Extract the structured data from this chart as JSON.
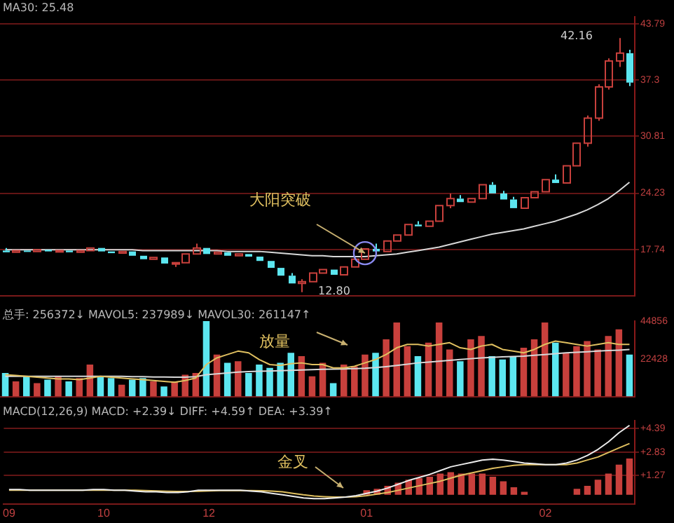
{
  "chart_data": [
    {
      "type": "candlestick",
      "title": "MA30: 25.48",
      "categories": [
        "09",
        null,
        null,
        null,
        null,
        null,
        null,
        null,
        null,
        "10",
        null,
        null,
        null,
        null,
        null,
        null,
        null,
        null,
        null,
        "12",
        null,
        null,
        null,
        null,
        null,
        null,
        null,
        null,
        null,
        null,
        null,
        null,
        null,
        null,
        "01",
        null,
        null,
        null,
        null,
        null,
        null,
        null,
        null,
        null,
        null,
        null,
        null,
        null,
        null,
        null,
        null,
        "02",
        null,
        null,
        null,
        null,
        null,
        null,
        null,
        null
      ],
      "ohlc": [
        [
          17.6,
          17.9,
          17.3,
          17.4
        ],
        [
          17.4,
          17.7,
          17.2,
          17.6
        ],
        [
          17.6,
          17.8,
          17.4,
          17.5
        ],
        [
          17.5,
          17.8,
          17.3,
          17.7
        ],
        [
          17.7,
          17.9,
          17.4,
          17.5
        ],
        [
          17.5,
          17.7,
          17.3,
          17.6
        ],
        [
          17.6,
          17.8,
          17.3,
          17.4
        ],
        [
          17.4,
          17.7,
          17.2,
          17.6
        ],
        [
          17.6,
          18.0,
          17.5,
          17.9
        ],
        [
          17.9,
          18.1,
          17.4,
          17.5
        ],
        [
          17.5,
          17.7,
          17.2,
          17.3
        ],
        [
          17.3,
          17.6,
          17.1,
          17.5
        ],
        [
          17.5,
          17.6,
          16.9,
          17.0
        ],
        [
          17.0,
          17.2,
          16.5,
          16.6
        ],
        [
          16.6,
          16.9,
          16.4,
          16.8
        ],
        [
          16.8,
          16.9,
          16.0,
          16.1
        ],
        [
          16.1,
          16.4,
          15.7,
          16.2
        ],
        [
          16.2,
          17.4,
          16.1,
          17.2
        ],
        [
          17.2,
          18.4,
          17.0,
          17.9
        ],
        [
          17.9,
          18.0,
          17.0,
          17.2
        ],
        [
          17.2,
          17.6,
          17.0,
          17.4
        ],
        [
          17.4,
          17.6,
          16.8,
          17.0
        ],
        [
          17.0,
          17.4,
          16.9,
          17.2
        ],
        [
          17.2,
          17.3,
          16.7,
          16.9
        ],
        [
          16.9,
          17.0,
          16.2,
          16.4
        ],
        [
          16.4,
          16.5,
          15.4,
          15.6
        ],
        [
          15.6,
          15.8,
          14.5,
          14.7
        ],
        [
          14.7,
          15.0,
          13.6,
          13.8
        ],
        [
          13.8,
          14.3,
          12.8,
          14.0
        ],
        [
          14.0,
          15.2,
          13.9,
          15.0
        ],
        [
          15.0,
          15.6,
          14.8,
          15.4
        ],
        [
          15.4,
          15.5,
          14.6,
          14.8
        ],
        [
          14.8,
          15.9,
          14.7,
          15.7
        ],
        [
          15.7,
          16.8,
          15.5,
          16.6
        ],
        [
          16.6,
          18.0,
          16.5,
          17.8
        ],
        [
          17.8,
          18.4,
          17.3,
          17.5
        ],
        [
          17.5,
          18.9,
          17.4,
          18.7
        ],
        [
          18.7,
          19.6,
          18.5,
          19.4
        ],
        [
          19.4,
          20.8,
          19.2,
          20.6
        ],
        [
          20.6,
          21.0,
          20.2,
          20.4
        ],
        [
          20.4,
          21.2,
          20.3,
          21.0
        ],
        [
          21.0,
          23.0,
          20.9,
          22.8
        ],
        [
          22.8,
          24.2,
          22.5,
          23.6
        ],
        [
          23.6,
          24.0,
          23.0,
          23.2
        ],
        [
          23.2,
          23.8,
          23.1,
          23.6
        ],
        [
          23.6,
          25.4,
          23.5,
          25.2
        ],
        [
          25.2,
          25.5,
          24.0,
          24.2
        ],
        [
          24.2,
          24.5,
          23.3,
          23.5
        ],
        [
          23.5,
          23.8,
          22.3,
          22.5
        ],
        [
          22.5,
          23.9,
          22.4,
          23.7
        ],
        [
          23.7,
          24.6,
          23.5,
          24.4
        ],
        [
          24.4,
          26.0,
          24.2,
          25.8
        ],
        [
          25.8,
          26.4,
          25.2,
          25.4
        ],
        [
          25.4,
          27.6,
          25.3,
          27.4
        ],
        [
          27.4,
          30.2,
          27.2,
          30.0
        ],
        [
          30.0,
          33.2,
          29.6,
          32.9
        ],
        [
          32.9,
          36.8,
          32.6,
          36.5
        ],
        [
          36.5,
          39.8,
          36.2,
          39.5
        ],
        [
          39.5,
          42.16,
          38.8,
          40.4
        ],
        [
          40.4,
          40.8,
          36.6,
          37.0
        ]
      ],
      "colors": [
        "#5ce6f0",
        "#c8403c",
        "#5ce6f0",
        "#c8403c",
        "#5ce6f0",
        "#c8403c",
        "#5ce6f0",
        "#c8403c",
        "#c8403c",
        "#5ce6f0",
        "#5ce6f0",
        "#c8403c",
        "#5ce6f0",
        "#5ce6f0",
        "#c8403c",
        "#5ce6f0",
        "#c8403c",
        "#c8403c",
        "#c8403c",
        "#5ce6f0",
        "#c8403c",
        "#5ce6f0",
        "#c8403c",
        "#5ce6f0",
        "#5ce6f0",
        "#5ce6f0",
        "#5ce6f0",
        "#5ce6f0",
        "#c8403c",
        "#c8403c",
        "#c8403c",
        "#5ce6f0",
        "#c8403c",
        "#c8403c",
        "#c8403c",
        "#5ce6f0",
        "#c8403c",
        "#c8403c",
        "#c8403c",
        "#5ce6f0",
        "#c8403c",
        "#c8403c",
        "#c8403c",
        "#5ce6f0",
        "#c8403c",
        "#c8403c",
        "#5ce6f0",
        "#5ce6f0",
        "#5ce6f0",
        "#c8403c",
        "#c8403c",
        "#c8403c",
        "#5ce6f0",
        "#c8403c",
        "#c8403c",
        "#c8403c",
        "#c8403c",
        "#c8403c",
        "#c8403c",
        "#5ce6f0"
      ],
      "series": [
        {
          "type": "line",
          "color": "#d8d8d8",
          "values": [
            17.7,
            17.7,
            17.7,
            17.7,
            17.7,
            17.7,
            17.7,
            17.7,
            17.7,
            17.7,
            17.7,
            17.7,
            17.7,
            17.6,
            17.6,
            17.6,
            17.6,
            17.6,
            17.6,
            17.6,
            17.6,
            17.5,
            17.5,
            17.5,
            17.5,
            17.4,
            17.3,
            17.2,
            17.1,
            17.0,
            17.0,
            16.9,
            16.9,
            16.9,
            16.9,
            17.0,
            17.1,
            17.2,
            17.4,
            17.6,
            17.8,
            18.0,
            18.3,
            18.6,
            18.9,
            19.2,
            19.5,
            19.7,
            19.9,
            20.1,
            20.4,
            20.7,
            21.0,
            21.4,
            21.8,
            22.3,
            22.9,
            23.6,
            24.5,
            25.48
          ]
        }
      ],
      "ylim": [
        12.4,
        44.6
      ],
      "yticks": [
        17.74,
        24.23,
        30.81,
        37.3,
        43.79
      ],
      "grid": "y",
      "tick_labels": "y",
      "annotations": [
        "42.16",
        "12.80",
        {
          "text": "大阳突破",
          "x": "01",
          "y": 17.3
        }
      ]
    },
    {
      "type": "bar",
      "title": "总手: 256372↓ MAVOL5: 237989↓ MAVOL30: 261147↑",
      "categories": [
        "09",
        null,
        null,
        null,
        null,
        null,
        null,
        null,
        null,
        "10",
        null,
        null,
        null,
        null,
        null,
        null,
        null,
        null,
        null,
        "12",
        null,
        null,
        null,
        null,
        null,
        null,
        null,
        null,
        null,
        null,
        null,
        null,
        null,
        null,
        "01",
        null,
        null,
        null,
        null,
        null,
        null,
        null,
        null,
        null,
        null,
        null,
        null,
        null,
        null,
        null,
        null,
        "02",
        null,
        null,
        null,
        null,
        null,
        null,
        null,
        null
      ],
      "series": [
        {
          "type": "bar",
          "colors": [
            "#5ce6f0",
            "#c8403c",
            "#5ce6f0",
            "#c8403c",
            "#5ce6f0",
            "#c8403c",
            "#5ce6f0",
            "#c8403c",
            "#c8403c",
            "#5ce6f0",
            "#5ce6f0",
            "#c8403c",
            "#5ce6f0",
            "#5ce6f0",
            "#c8403c",
            "#5ce6f0",
            "#c8403c",
            "#c8403c",
            "#c8403c",
            "#5ce6f0",
            "#c8403c",
            "#5ce6f0",
            "#c8403c",
            "#5ce6f0",
            "#5ce6f0",
            "#5ce6f0",
            "#5ce6f0",
            "#5ce6f0",
            "#c8403c",
            "#c8403c",
            "#c8403c",
            "#5ce6f0",
            "#c8403c",
            "#c8403c",
            "#c8403c",
            "#5ce6f0",
            "#c8403c",
            "#c8403c",
            "#c8403c",
            "#5ce6f0",
            "#c8403c",
            "#c8403c",
            "#c8403c",
            "#5ce6f0",
            "#c8403c",
            "#c8403c",
            "#5ce6f0",
            "#5ce6f0",
            "#5ce6f0",
            "#c8403c",
            "#c8403c",
            "#c8403c",
            "#5ce6f0",
            "#c8403c",
            "#c8403c",
            "#c8403c",
            "#c8403c",
            "#c8403c",
            "#c8403c",
            "#5ce6f0"
          ],
          "values": [
            14000,
            9000,
            12000,
            8000,
            10000,
            12000,
            9000,
            11000,
            19000,
            12000,
            11000,
            7000,
            10000,
            11000,
            9000,
            6000,
            9000,
            13000,
            14000,
            44856,
            25000,
            20000,
            21000,
            14000,
            19000,
            17000,
            20000,
            26000,
            24000,
            12000,
            20000,
            8000,
            19000,
            18000,
            25000,
            26000,
            34000,
            44000,
            30000,
            24000,
            32000,
            44000,
            28000,
            21000,
            34000,
            36000,
            24000,
            22000,
            24000,
            29000,
            34000,
            44000,
            32000,
            26000,
            30000,
            33000,
            28000,
            36000,
            40000,
            25000
          ]
        },
        {
          "type": "line",
          "color": "#e0c060",
          "values": [
            13000,
            12500,
            12000,
            11500,
            11000,
            10500,
            10500,
            10000,
            11000,
            12000,
            11500,
            11000,
            10500,
            10000,
            9500,
            9000,
            8500,
            9500,
            11000,
            19000,
            23000,
            25000,
            27000,
            26000,
            22000,
            19000,
            18500,
            19500,
            20000,
            19000,
            19000,
            17000,
            17000,
            18000,
            20000,
            22000,
            25000,
            29000,
            31000,
            31000,
            30000,
            31000,
            32000,
            29000,
            28000,
            30000,
            31000,
            28000,
            27000,
            26000,
            28000,
            31000,
            33000,
            32000,
            31000,
            30000,
            31000,
            32000,
            31000,
            31000
          ]
        },
        {
          "type": "line",
          "color": "#d8d8d8",
          "values": [
            12000,
            12000,
            12000,
            12000,
            12000,
            12000,
            12000,
            12000,
            12000,
            12000,
            12000,
            12000,
            11800,
            11800,
            11600,
            11600,
            11500,
            11500,
            11800,
            13000,
            13500,
            14000,
            14500,
            14800,
            15000,
            15200,
            15400,
            15600,
            15800,
            16000,
            16200,
            16300,
            16400,
            16600,
            16800,
            17200,
            17800,
            18500,
            19200,
            20000,
            20500,
            21000,
            21500,
            22000,
            22500,
            23000,
            23300,
            23600,
            23800,
            24000,
            24500,
            25000,
            25500,
            26000,
            26300,
            26600,
            27000,
            27300,
            27600,
            28000
          ]
        }
      ],
      "ylim": [
        0,
        44856
      ],
      "yticks": [
        22428,
        44856
      ],
      "tick_labels": "y",
      "annotations": [
        "放量"
      ]
    },
    {
      "type": "line",
      "title": "MACD(12,26,9) MACD: +2.39↓ DIFF: +4.59↑ DEA: +3.39↑",
      "categories": [
        "09",
        null,
        null,
        null,
        null,
        null,
        null,
        null,
        null,
        "10",
        null,
        null,
        null,
        null,
        null,
        null,
        null,
        null,
        null,
        "12",
        null,
        null,
        null,
        null,
        null,
        null,
        null,
        null,
        null,
        null,
        null,
        null,
        null,
        null,
        "01",
        null,
        null,
        null,
        null,
        null,
        null,
        null,
        null,
        null,
        null,
        null,
        null,
        null,
        null,
        null,
        null,
        "02",
        null,
        null,
        null,
        null,
        null,
        null,
        null,
        null
      ],
      "series": [
        {
          "type": "bar",
          "color": "#c8403c",
          "values": [
            null,
            null,
            null,
            null,
            null,
            null,
            null,
            null,
            null,
            null,
            null,
            null,
            null,
            null,
            null,
            null,
            null,
            null,
            null,
            null,
            null,
            null,
            null,
            null,
            null,
            null,
            null,
            null,
            null,
            null,
            null,
            null,
            null,
            null,
            0.3,
            0.4,
            0.6,
            0.8,
            1.0,
            1.1,
            1.2,
            1.4,
            1.5,
            1.4,
            1.4,
            1.4,
            1.2,
            0.9,
            0.5,
            0.2,
            null,
            null,
            null,
            null,
            0.4,
            0.6,
            1.0,
            1.4,
            2.0,
            2.4
          ]
        },
        {
          "type": "line",
          "color": "#ececec",
          "values": [
            0.35,
            0.35,
            0.3,
            0.3,
            0.3,
            0.3,
            0.3,
            0.3,
            0.35,
            0.35,
            0.3,
            0.3,
            0.25,
            0.2,
            0.2,
            0.15,
            0.15,
            0.2,
            0.3,
            0.3,
            0.3,
            0.3,
            0.3,
            0.25,
            0.2,
            0.1,
            0.0,
            -0.1,
            -0.2,
            -0.25,
            -0.25,
            -0.2,
            -0.15,
            -0.05,
            0.1,
            0.25,
            0.45,
            0.7,
            0.95,
            1.15,
            1.35,
            1.6,
            1.85,
            2.0,
            2.15,
            2.3,
            2.35,
            2.3,
            2.2,
            2.1,
            2.05,
            2.0,
            2.0,
            2.1,
            2.3,
            2.6,
            3.0,
            3.5,
            4.1,
            4.59
          ]
        },
        {
          "type": "line",
          "color": "#e0c060",
          "values": [
            0.3,
            0.3,
            0.3,
            0.3,
            0.3,
            0.3,
            0.3,
            0.3,
            0.3,
            0.3,
            0.3,
            0.3,
            0.3,
            0.28,
            0.26,
            0.24,
            0.22,
            0.22,
            0.24,
            0.26,
            0.28,
            0.28,
            0.28,
            0.28,
            0.27,
            0.25,
            0.2,
            0.1,
            0.0,
            -0.08,
            -0.12,
            -0.15,
            -0.15,
            -0.12,
            -0.05,
            0.05,
            0.15,
            0.3,
            0.45,
            0.6,
            0.75,
            0.9,
            1.1,
            1.3,
            1.45,
            1.6,
            1.75,
            1.85,
            1.95,
            2.0,
            2.0,
            2.0,
            2.0,
            2.0,
            2.1,
            2.3,
            2.5,
            2.8,
            3.1,
            3.39
          ]
        }
      ],
      "ylim": [
        -0.6,
        4.9
      ],
      "yticks": [
        {
          "value": 1.27,
          "label": "+1.27"
        },
        {
          "value": 2.83,
          "label": "+2.83"
        },
        {
          "value": 4.39,
          "label": "+4.39"
        }
      ],
      "grid": "y",
      "annotations": [
        "金叉"
      ]
    }
  ]
}
